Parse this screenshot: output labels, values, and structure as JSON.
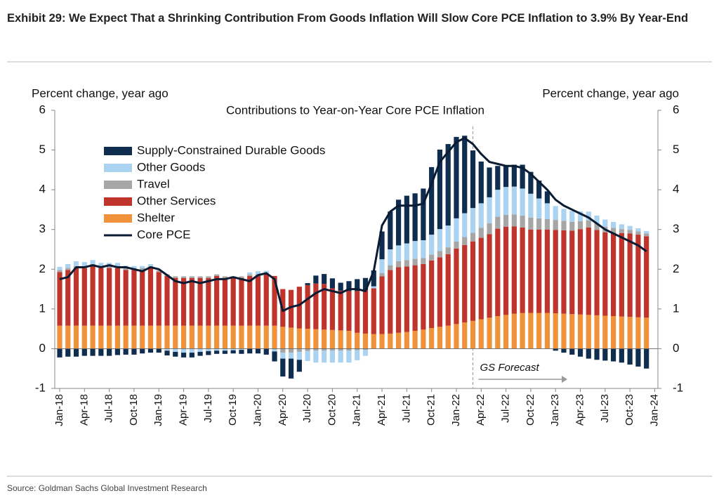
{
  "chart_data": {
    "type": "stacked-bar-line",
    "title": "Exhibit 29: We Expect That a Shrinking Contribution From Goods Inflation Will Slow Core PCE Inflation to 3.9% By Year-End",
    "subtitle": "Contributions to Year-on-Year Core PCE Inflation",
    "y_label": "Percent change, year ago",
    "y2_label": "Percent change, year ago",
    "annotation": "GS Forecast",
    "source": "Source: Goldman Sachs Global Investment Research",
    "categories": [
      "Jan-18",
      null,
      null,
      "Apr-18",
      null,
      null,
      "Jul-18",
      null,
      null,
      "Oct-18",
      null,
      null,
      "Jan-19",
      null,
      null,
      "Apr-19",
      null,
      null,
      "Jul-19",
      null,
      null,
      "Oct-19",
      null,
      null,
      "Jan-20",
      null,
      null,
      "Apr-20",
      null,
      null,
      "Jul-20",
      null,
      null,
      "Oct-20",
      null,
      null,
      "Jan-21",
      null,
      null,
      "Apr-21",
      null,
      null,
      "Jul-21",
      null,
      null,
      "Oct-21",
      null,
      null,
      "Jan-22",
      null,
      null,
      "Apr-22",
      null,
      null,
      "Jul-22",
      null,
      null,
      "Oct-22",
      null,
      null,
      "Jan-23",
      null,
      null,
      "Apr-23",
      null,
      null,
      "Jul-23",
      null,
      null,
      "Oct-23",
      null,
      null,
      "Jan-24"
    ],
    "series": [
      {
        "name": "Shelter",
        "color": "#f0923a",
        "values": [
          0.58,
          0.58,
          0.58,
          0.58,
          0.58,
          0.58,
          0.58,
          0.58,
          0.58,
          0.58,
          0.58,
          0.58,
          0.58,
          0.58,
          0.58,
          0.58,
          0.58,
          0.58,
          0.58,
          0.58,
          0.58,
          0.58,
          0.58,
          0.58,
          0.58,
          0.58,
          0.58,
          0.55,
          0.53,
          0.51,
          0.5,
          0.49,
          0.48,
          0.47,
          0.46,
          0.45,
          0.4,
          0.38,
          0.37,
          0.37,
          0.38,
          0.4,
          0.42,
          0.45,
          0.48,
          0.52,
          0.55,
          0.58,
          0.62,
          0.66,
          0.7,
          0.74,
          0.78,
          0.82,
          0.85,
          0.88,
          0.9,
          0.9,
          0.9,
          0.9,
          0.89,
          0.88,
          0.87,
          0.86,
          0.85,
          0.84,
          0.83,
          0.82,
          0.81,
          0.8,
          0.79,
          0.78,
          null
        ]
      },
      {
        "name": "Other Services",
        "color": "#c0352b",
        "values": [
          1.35,
          1.4,
          1.45,
          1.45,
          1.5,
          1.45,
          1.45,
          1.45,
          1.4,
          1.4,
          1.4,
          1.45,
          1.35,
          1.25,
          1.2,
          1.2,
          1.2,
          1.2,
          1.2,
          1.25,
          1.2,
          1.2,
          1.2,
          1.25,
          1.25,
          1.3,
          1.25,
          0.95,
          0.95,
          1.05,
          1.1,
          1.15,
          1.15,
          1.05,
          1.0,
          1.0,
          1.05,
          1.1,
          1.15,
          1.45,
          1.6,
          1.65,
          1.65,
          1.65,
          1.65,
          1.7,
          1.75,
          1.8,
          1.9,
          1.95,
          2.0,
          2.05,
          2.1,
          2.2,
          2.22,
          2.2,
          2.15,
          2.1,
          2.1,
          2.1,
          2.1,
          2.1,
          2.1,
          2.15,
          2.2,
          2.15,
          2.1,
          2.1,
          2.1,
          2.1,
          2.08,
          2.05,
          null
        ]
      },
      {
        "name": "Travel",
        "color": "#a6a6a6",
        "values": [
          0.05,
          0.05,
          0.05,
          0.05,
          0.05,
          0.05,
          0.05,
          0.05,
          0.05,
          0.05,
          0.05,
          0.05,
          0.04,
          0.04,
          0.04,
          0.04,
          0.04,
          0.04,
          0.04,
          0.04,
          0.04,
          0.04,
          0.04,
          0.04,
          0.04,
          0.03,
          -0.02,
          -0.1,
          -0.1,
          -0.08,
          -0.06,
          -0.05,
          -0.05,
          -0.05,
          -0.05,
          -0.05,
          -0.04,
          -0.03,
          0.0,
          0.08,
          0.12,
          0.15,
          0.16,
          0.16,
          0.15,
          0.15,
          0.16,
          0.17,
          0.18,
          0.2,
          0.22,
          0.25,
          0.28,
          0.3,
          0.3,
          0.3,
          0.3,
          0.3,
          0.28,
          0.26,
          0.25,
          0.24,
          0.22,
          0.2,
          0.18,
          0.16,
          0.14,
          0.12,
          0.1,
          0.09,
          0.08,
          0.07,
          null
        ]
      },
      {
        "name": "Other Goods",
        "color": "#a9d3f0",
        "values": [
          0.08,
          0.1,
          0.12,
          0.1,
          0.1,
          0.08,
          0.08,
          0.08,
          0.06,
          0.05,
          0.05,
          0.05,
          0.0,
          -0.05,
          -0.08,
          -0.1,
          -0.1,
          -0.08,
          -0.06,
          -0.05,
          -0.05,
          -0.04,
          -0.03,
          0.05,
          0.08,
          0.05,
          -0.05,
          -0.15,
          -0.15,
          -0.2,
          -0.25,
          -0.3,
          -0.3,
          -0.3,
          -0.3,
          -0.3,
          -0.25,
          -0.15,
          0.05,
          0.35,
          0.4,
          0.4,
          0.42,
          0.45,
          0.45,
          0.5,
          0.55,
          0.55,
          0.58,
          0.6,
          0.62,
          0.62,
          0.65,
          0.68,
          0.7,
          0.7,
          0.68,
          0.6,
          0.5,
          0.4,
          0.35,
          0.3,
          0.28,
          0.25,
          0.22,
          0.2,
          0.18,
          0.15,
          0.12,
          0.1,
          0.08,
          0.06,
          null
        ]
      },
      {
        "name": "Supply-Constrained Durable Goods",
        "color": "#0f2d4f",
        "values": [
          -0.22,
          -0.2,
          -0.2,
          -0.18,
          -0.18,
          -0.18,
          -0.18,
          -0.16,
          -0.15,
          -0.15,
          -0.12,
          -0.1,
          -0.1,
          -0.12,
          -0.12,
          -0.12,
          -0.12,
          -0.1,
          -0.1,
          -0.08,
          -0.08,
          -0.08,
          -0.1,
          -0.12,
          -0.12,
          -0.15,
          -0.25,
          -0.45,
          -0.5,
          -0.3,
          0.05,
          0.2,
          0.25,
          0.25,
          0.2,
          0.25,
          0.3,
          0.3,
          0.4,
          0.7,
          0.95,
          1.15,
          1.2,
          1.2,
          1.3,
          1.7,
          2.0,
          2.05,
          2.05,
          1.95,
          1.45,
          1.05,
          0.75,
          0.6,
          0.55,
          0.55,
          0.6,
          0.55,
          0.45,
          0.3,
          -0.05,
          -0.1,
          -0.15,
          -0.2,
          -0.25,
          -0.28,
          -0.3,
          -0.32,
          -0.35,
          -0.4,
          -0.45,
          -0.5,
          null
        ]
      },
      {
        "name": "Core PCE",
        "color": "#0a1b33",
        "line": true,
        "values": [
          1.75,
          1.8,
          2.05,
          2.05,
          2.1,
          2.05,
          2.1,
          2.05,
          2.05,
          2.0,
          1.95,
          2.05,
          2.0,
          1.85,
          1.7,
          1.65,
          1.7,
          1.65,
          1.7,
          1.75,
          1.75,
          1.8,
          1.75,
          1.7,
          1.85,
          1.9,
          1.75,
          0.95,
          1.05,
          1.1,
          1.25,
          1.4,
          1.5,
          1.45,
          1.4,
          1.5,
          1.5,
          1.45,
          1.95,
          3.1,
          3.45,
          3.6,
          3.6,
          3.6,
          3.65,
          4.15,
          4.7,
          4.95,
          5.2,
          5.3,
          5.15,
          4.9,
          4.7,
          4.65,
          4.6,
          4.6,
          4.55,
          4.4,
          4.2,
          4.0,
          3.75,
          3.6,
          3.5,
          3.4,
          3.3,
          3.15,
          3.0,
          2.9,
          2.8,
          2.7,
          2.6,
          2.45,
          null
        ]
      }
    ],
    "legend_order": [
      "Supply-Constrained Durable Goods",
      "Other Goods",
      "Travel",
      "Other Services",
      "Shelter",
      "Core PCE"
    ],
    "ylim": [
      -1,
      6
    ],
    "yticks": [
      -1,
      0,
      1,
      2,
      3,
      4,
      5,
      6
    ],
    "y2lim": [
      -1,
      6
    ],
    "y2ticks": [
      -1,
      0,
      1,
      2,
      3,
      4,
      5,
      6
    ],
    "grid": false,
    "legend": "upper-left"
  }
}
